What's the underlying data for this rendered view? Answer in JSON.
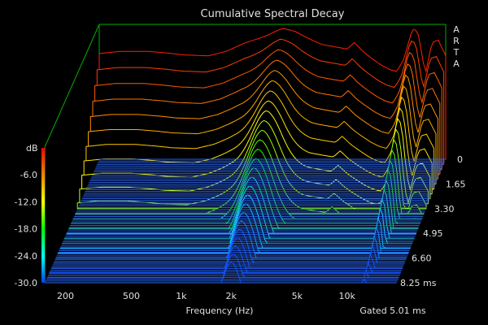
{
  "app": {
    "watermark": "ARTA"
  },
  "chart_data": {
    "type": "waterfall",
    "title": "Cumulative Spectral Decay",
    "xlabel": "Frequency (Hz)",
    "ylabel": "dB",
    "gate_label": "Gated 5.01 ms",
    "x_ticks": [
      {
        "value": 200,
        "label": "200"
      },
      {
        "value": 500,
        "label": "500"
      },
      {
        "value": 1000,
        "label": "1k"
      },
      {
        "value": 2000,
        "label": "2k"
      },
      {
        "value": 5000,
        "label": "5k"
      },
      {
        "value": 10000,
        "label": "10k"
      }
    ],
    "xlim": [
      150,
      20000
    ],
    "ylim": [
      -30,
      0
    ],
    "y_ticks": [
      "dB",
      "-6.0",
      "-12.0",
      "-18.0",
      "-24.0",
      "-30.0"
    ],
    "time_ticks": [
      "0",
      "1.65",
      "3.30",
      "4.95",
      "6.60",
      "8.25 ms"
    ],
    "time_range_ms": [
      0,
      8.25
    ],
    "colorbar": [
      "#ff0000",
      "#ff8000",
      "#ffff00",
      "#00ff00",
      "#00ffff",
      "#0040ff"
    ],
    "floor_color": "#2f6cff",
    "frame_color": "#00b000",
    "slices": 26,
    "response_db": [
      {
        "f": 150,
        "db": -5.5
      },
      {
        "f": 200,
        "db": -5.0
      },
      {
        "f": 300,
        "db": -5.0
      },
      {
        "f": 400,
        "db": -5.4
      },
      {
        "f": 500,
        "db": -5.8
      },
      {
        "f": 700,
        "db": -6.0
      },
      {
        "f": 900,
        "db": -5.0
      },
      {
        "f": 1200,
        "db": -3.0
      },
      {
        "f": 1600,
        "db": -1.8
      },
      {
        "f": 2000,
        "db": -0.5
      },
      {
        "f": 2400,
        "db": -1.0
      },
      {
        "f": 3000,
        "db": -2.5
      },
      {
        "f": 3500,
        "db": -3.5
      },
      {
        "f": 4200,
        "db": -4.0
      },
      {
        "f": 5000,
        "db": -4.5
      },
      {
        "f": 5500,
        "db": -3.0
      },
      {
        "f": 6200,
        "db": -5.0
      },
      {
        "f": 7000,
        "db": -6.5
      },
      {
        "f": 8000,
        "db": -8.0
      },
      {
        "f": 9000,
        "db": -9.0
      },
      {
        "f": 10000,
        "db": -9.5
      },
      {
        "f": 11000,
        "db": -7.0
      },
      {
        "f": 12500,
        "db": -0.5
      },
      {
        "f": 13500,
        "db": -1.0
      },
      {
        "f": 15000,
        "db": -10.0
      },
      {
        "f": 16500,
        "db": -3.0
      },
      {
        "f": 18000,
        "db": -2.5
      },
      {
        "f": 20000,
        "db": -6.0
      }
    ]
  }
}
